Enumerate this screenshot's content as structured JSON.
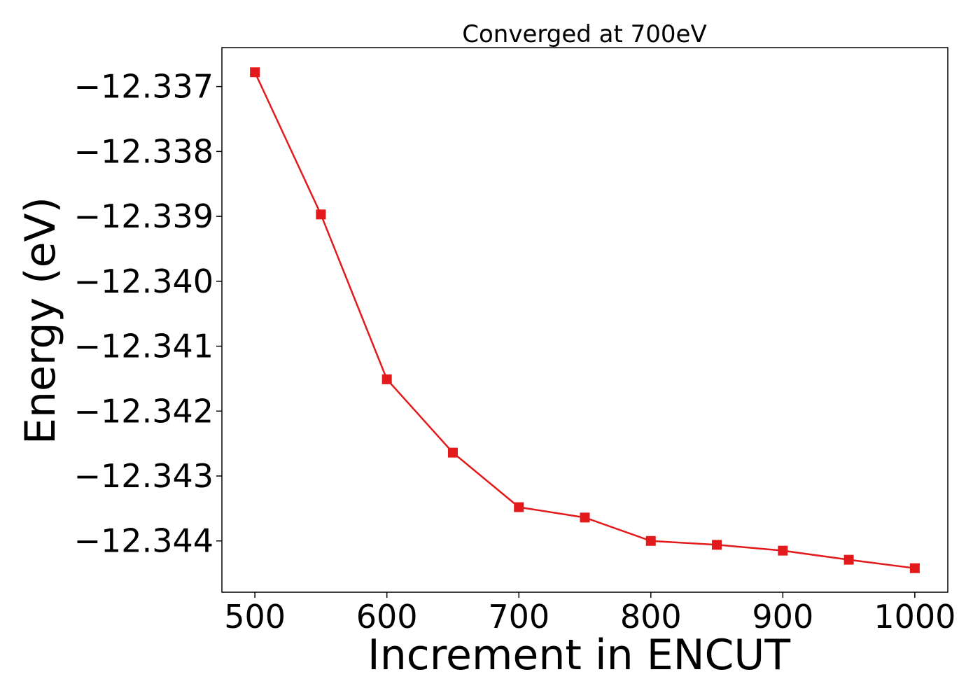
{
  "chart_data": {
    "type": "line",
    "title": "Converged at 700eV",
    "xlabel": "Increment in ENCUT",
    "ylabel": "Energy (eV)",
    "x": [
      500,
      550,
      600,
      650,
      700,
      750,
      800,
      850,
      900,
      950,
      1000
    ],
    "series": [
      {
        "values": [
          -12.33678,
          -12.33897,
          -12.34151,
          -12.34264,
          -12.34348,
          -12.34364,
          -12.344,
          -12.34406,
          -12.34415,
          -12.34429,
          -12.34442
        ],
        "color": "#e31a1c",
        "marker": "square"
      }
    ],
    "xticks": [
      500,
      600,
      700,
      800,
      900,
      1000
    ],
    "xtick_labels": [
      "500",
      "600",
      "700",
      "800",
      "900",
      "1000"
    ],
    "yticks": [
      -12.337,
      -12.338,
      -12.339,
      -12.34,
      -12.341,
      -12.342,
      -12.343,
      -12.344
    ],
    "ytick_labels": [
      "−12.337",
      "−12.338",
      "−12.339",
      "−12.340",
      "−12.341",
      "−12.342",
      "−12.343",
      "−12.344"
    ],
    "xlim": [
      475,
      1025
    ],
    "ylim": [
      -12.34479,
      -12.3364
    ],
    "grid": false,
    "legend": "none"
  }
}
